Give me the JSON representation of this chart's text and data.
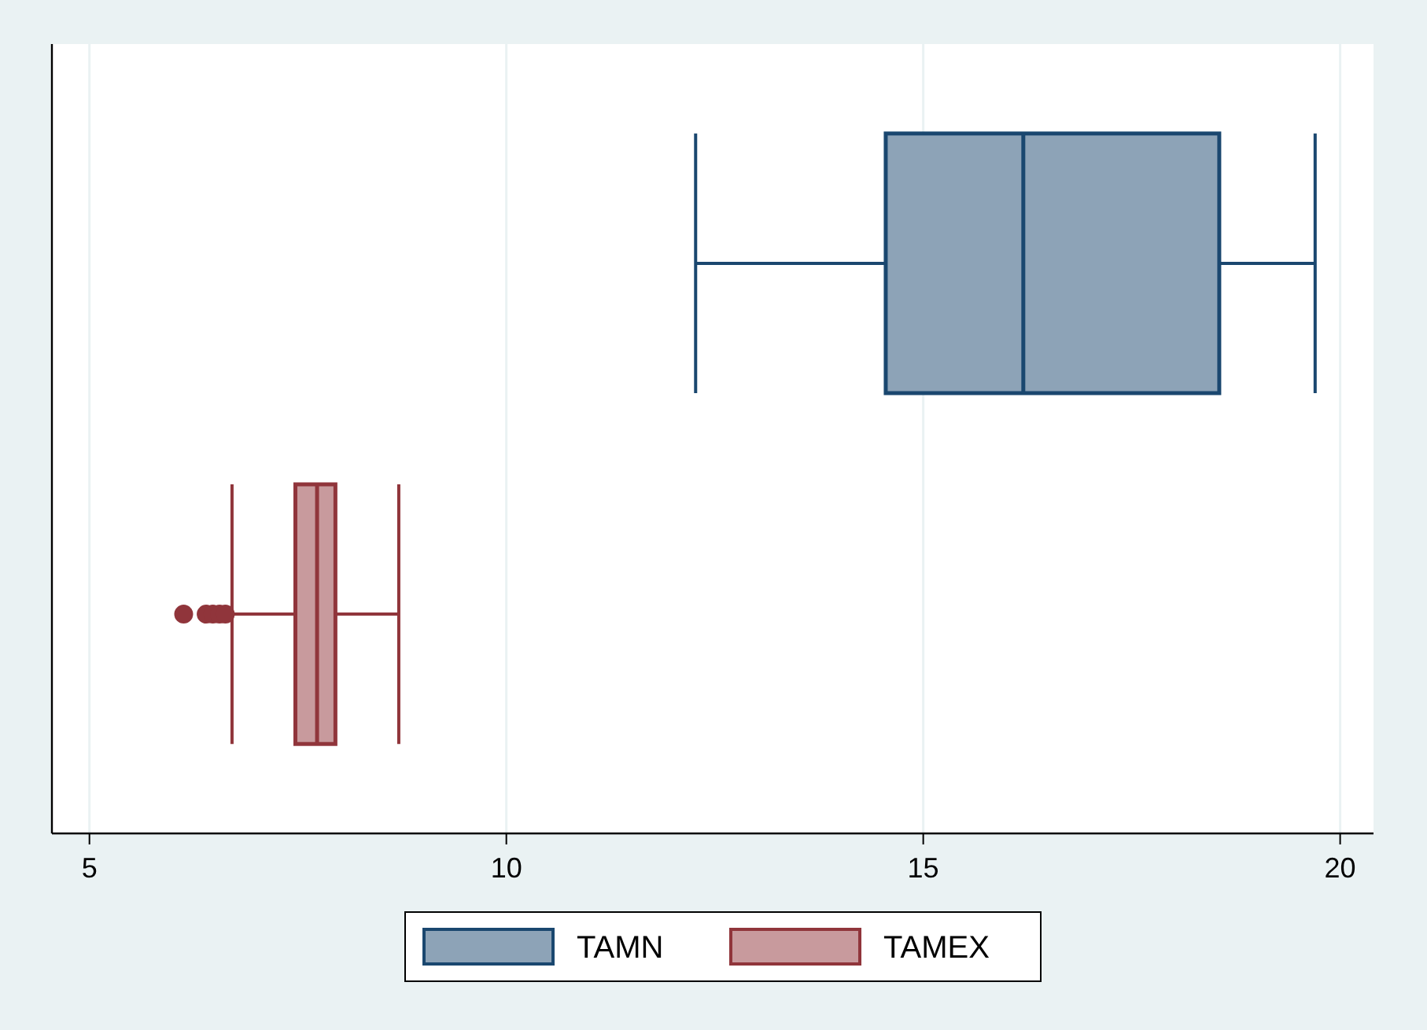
{
  "chart_data": {
    "type": "box",
    "orientation": "horizontal",
    "categories": [
      null
    ],
    "series": [
      {
        "name": "TAMN",
        "color": "#1a476f",
        "boxes": [
          {
            "low": 12.27,
            "q1": 14.55,
            "median": 16.2,
            "q3": 18.55,
            "high": 19.7
          }
        ]
      },
      {
        "name": "TAMEX",
        "color": "#90353b",
        "boxes": [
          {
            "low": 6.71,
            "q1": 7.47,
            "median": 7.73,
            "q3": 7.95,
            "high": 8.71,
            "outliers": [
              6.13,
              6.4,
              6.48,
              6.56,
              6.63
            ]
          }
        ]
      }
    ],
    "xlim": [
      4.55,
      20.4
    ],
    "xticks": [
      5,
      10,
      15,
      20
    ],
    "grid": "x",
    "legend": "bottom"
  }
}
